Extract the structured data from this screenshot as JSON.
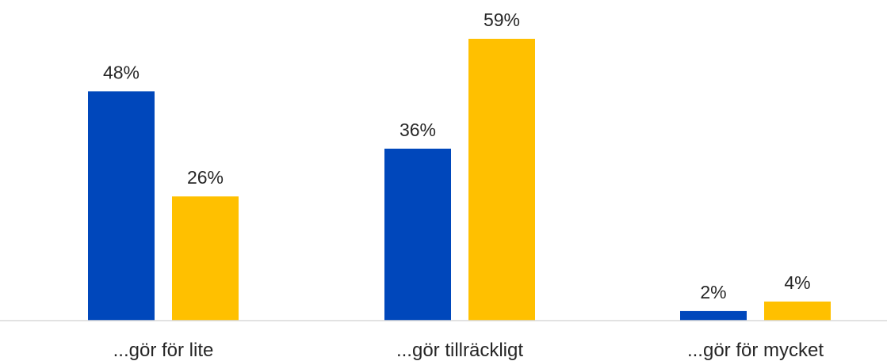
{
  "chart_data": {
    "type": "bar",
    "categories": [
      "...gör för lite",
      "...gör tillräckligt",
      "...gör för mycket"
    ],
    "series": [
      {
        "values": [
          48,
          36,
          2
        ],
        "color": "#0047BB",
        "value_labels": [
          "48%",
          "36%",
          "2%"
        ]
      },
      {
        "values": [
          26,
          59,
          4
        ],
        "color": "#FFC000",
        "value_labels": [
          "26%",
          "59%",
          "4%"
        ]
      }
    ],
    "unit": "%",
    "ylim": [
      0,
      65
    ],
    "grid": false,
    "legend": "none",
    "axis_color": "#D9D9D9"
  }
}
